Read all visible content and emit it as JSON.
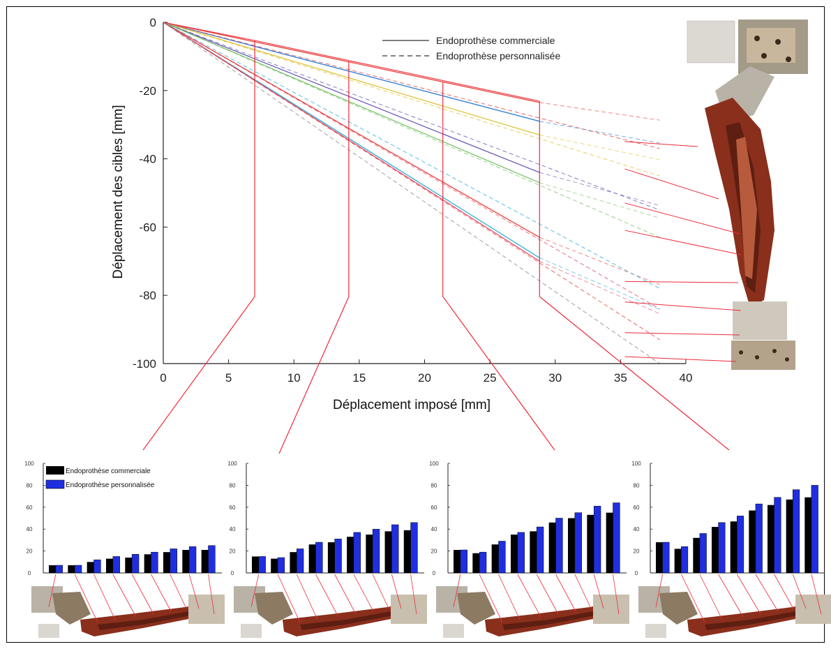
{
  "chart_data": [
    {
      "type": "line",
      "title": "",
      "xlabel": "Déplacement imposé [mm]",
      "ylabel": "Déplacement des cibles [mm]",
      "xlim": [
        0,
        40
      ],
      "ylim": [
        -100,
        0
      ],
      "xticks": [
        "0",
        "5",
        "10",
        "15",
        "20",
        "25",
        "30",
        "35",
        "40"
      ],
      "yticks": [
        "0",
        "-20",
        "-40",
        "-60",
        "-80",
        "-100"
      ],
      "legend": {
        "position": "top-right",
        "entries": [
          {
            "label": "Endoprothèse commerciale",
            "style": "solid"
          },
          {
            "label": "Endoprothèse personnalisée",
            "style": "dashed"
          }
        ]
      },
      "marker_x": [
        7,
        14.2,
        21.4,
        28.8
      ],
      "x": [
        0,
        28.8
      ],
      "x_dashed_end": 38,
      "series": [
        {
          "style": "solid",
          "color": "#e8413a",
          "values": [
            0,
            -23.5
          ]
        },
        {
          "style": "solid",
          "color": "#2b7bd6",
          "values": [
            0,
            -29
          ]
        },
        {
          "style": "solid",
          "color": "#e0c23a",
          "values": [
            0,
            -33
          ]
        },
        {
          "style": "solid",
          "color": "#6b5bb5",
          "values": [
            0,
            -44
          ]
        },
        {
          "style": "solid",
          "color": "#7bc36a",
          "values": [
            0,
            -47
          ]
        },
        {
          "style": "solid",
          "color": "#e8413a",
          "values": [
            0,
            -63
          ]
        },
        {
          "style": "solid",
          "color": "#2bb0d6",
          "values": [
            0,
            -69
          ]
        },
        {
          "style": "solid",
          "color": "#e04a6a",
          "values": [
            0,
            -70
          ]
        },
        {
          "style": "dashed",
          "color": "#e8413a",
          "values": [
            0,
            -37
          ]
        },
        {
          "style": "dashed",
          "color": "#e0c23a",
          "values": [
            0,
            -45
          ]
        },
        {
          "style": "dashed",
          "color": "#6b5bb5",
          "values": [
            0,
            -55
          ]
        },
        {
          "style": "dashed",
          "color": "#7bc36a",
          "values": [
            0,
            -63
          ]
        },
        {
          "style": "dashed",
          "color": "#2bb0d6",
          "values": [
            0,
            -78
          ]
        },
        {
          "style": "dashed",
          "color": "#e04a6a",
          "values": [
            0,
            -84
          ]
        },
        {
          "style": "dashed",
          "color": "#e8413a",
          "values": [
            0,
            -93
          ]
        },
        {
          "style": "dashed",
          "color": "#888888",
          "values": [
            0,
            -100
          ]
        }
      ]
    },
    {
      "type": "bar",
      "ylim": [
        0,
        100
      ],
      "yticks": [
        "0",
        "20",
        "40",
        "60",
        "80",
        "100"
      ],
      "legend": {
        "position": "top-left",
        "entries": [
          {
            "label": "Endoprothèse commerciale",
            "color": "#000000"
          },
          {
            "label": "Endoprothèse personnalisée",
            "color": "#1f2fe0"
          }
        ]
      },
      "series": [
        {
          "name": "Endoprothèse commerciale",
          "values": [
            7,
            7,
            10,
            13,
            14,
            17,
            19,
            21,
            21
          ]
        },
        {
          "name": "Endoprothèse personnalisée",
          "values": [
            7,
            7,
            12,
            15,
            17,
            19,
            22,
            24,
            25
          ]
        }
      ]
    },
    {
      "type": "bar",
      "ylim": [
        0,
        100
      ],
      "yticks": [
        "0",
        "20",
        "40",
        "60",
        "80",
        "100"
      ],
      "series": [
        {
          "name": "Endoprothèse commerciale",
          "values": [
            15,
            13,
            19,
            26,
            28,
            33,
            35,
            38,
            39
          ]
        },
        {
          "name": "Endoprothèse personnalisée",
          "values": [
            15,
            14,
            22,
            28,
            31,
            37,
            40,
            44,
            46
          ]
        }
      ]
    },
    {
      "type": "bar",
      "ylim": [
        0,
        100
      ],
      "yticks": [
        "0",
        "20",
        "40",
        "60",
        "80",
        "100"
      ],
      "series": [
        {
          "name": "Endoprothèse commerciale",
          "values": [
            21,
            18,
            26,
            35,
            38,
            46,
            50,
            53,
            55
          ]
        },
        {
          "name": "Endoprothèse personnalisée",
          "values": [
            21,
            19,
            29,
            37,
            42,
            50,
            55,
            61,
            64
          ]
        }
      ]
    },
    {
      "type": "bar",
      "ylim": [
        0,
        100
      ],
      "yticks": [
        "0",
        "20",
        "40",
        "60",
        "80",
        "100"
      ],
      "series": [
        {
          "name": "Endoprothèse commerciale",
          "values": [
            28,
            22,
            32,
            42,
            47,
            57,
            62,
            67,
            69
          ]
        },
        {
          "name": "Endoprothèse personnalisée",
          "values": [
            28,
            24,
            36,
            46,
            52,
            63,
            69,
            76,
            80
          ]
        }
      ]
    }
  ],
  "colors": {
    "connector": "#ee2a3a",
    "bar_commercial": "#000000",
    "bar_custom": "#1f2fe0",
    "photo_bone": "#8a2f1c",
    "photo_metal": "#b9b2a6"
  },
  "images": {
    "specimen_photo": "vertical-specimen-photo",
    "small_photo": "horizontal-specimen-photo"
  }
}
